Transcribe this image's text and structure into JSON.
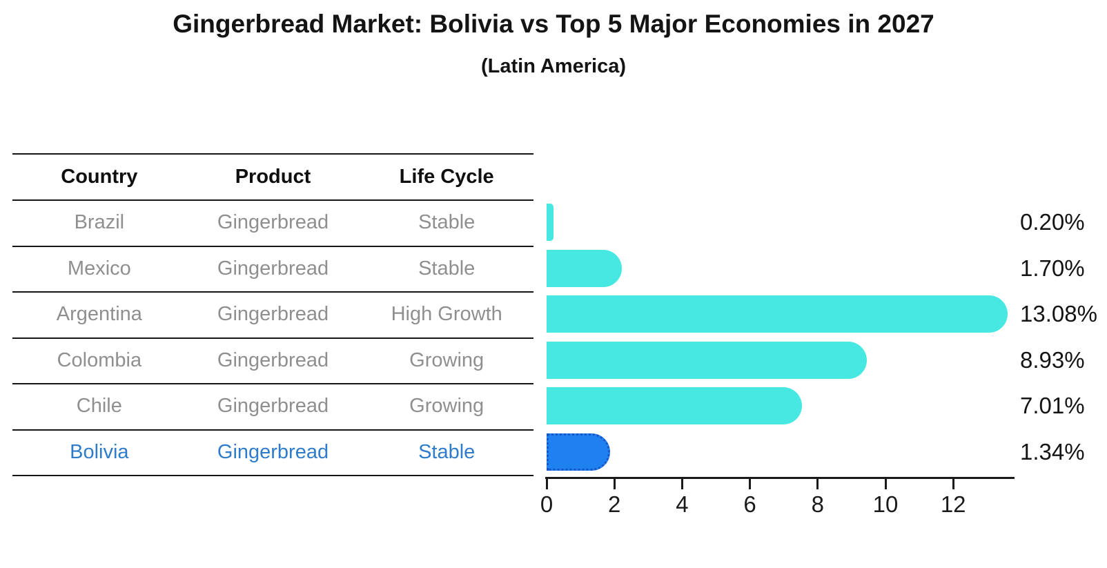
{
  "title": "Gingerbread Market: Bolivia vs Top 5 Major Economies in 2027",
  "subtitle": "(Latin America)",
  "table": {
    "headers": [
      "Country",
      "Product",
      "Life Cycle"
    ],
    "rows": [
      {
        "country": "Brazil",
        "product": "Gingerbread",
        "life_cycle": "Stable",
        "highlight": false
      },
      {
        "country": "Mexico",
        "product": "Gingerbread",
        "life_cycle": "Stable",
        "highlight": false
      },
      {
        "country": "Argentina",
        "product": "Gingerbread",
        "life_cycle": "High Growth",
        "highlight": false
      },
      {
        "country": "Colombia",
        "product": "Gingerbread",
        "life_cycle": "Growing",
        "highlight": false
      },
      {
        "country": "Chile",
        "product": "Gingerbread",
        "life_cycle": "Growing",
        "highlight": false
      },
      {
        "country": "Bolivia",
        "product": "Gingerbread",
        "life_cycle": "Stable",
        "highlight": true
      }
    ]
  },
  "chart_data": {
    "type": "bar",
    "orientation": "horizontal",
    "categories": [
      "Brazil",
      "Mexico",
      "Argentina",
      "Colombia",
      "Chile",
      "Bolivia"
    ],
    "values": [
      0.2,
      1.7,
      13.08,
      8.93,
      7.01,
      1.34
    ],
    "value_labels": [
      "0.20%",
      "1.70%",
      "13.08%",
      "8.93%",
      "7.01%",
      "1.34%"
    ],
    "highlight_index": 5,
    "x_ticks": [
      "0",
      "2",
      "4",
      "6",
      "8",
      "10",
      "12"
    ],
    "xlim": [
      0,
      13.8
    ],
    "grid": false,
    "legend": "none",
    "bar_color": "#48e8e2",
    "highlight_bar_color": "#1f80f0",
    "highlight_border_color": "#1a55c8",
    "highlight_text_color": "#2e7cca",
    "table_text_color": "#8f8f8f",
    "axis_color": "#1a1a1a"
  }
}
